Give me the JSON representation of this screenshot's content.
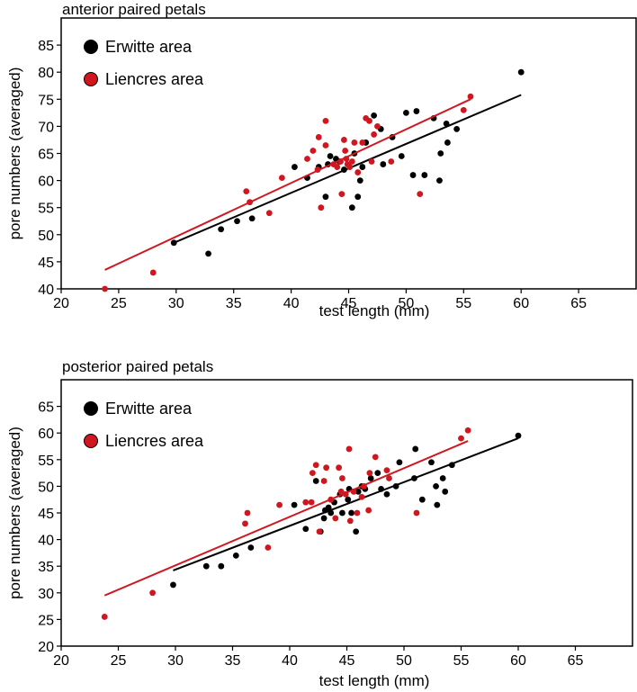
{
  "colors": {
    "erwitte": "#000000",
    "liencres": "#d0161f"
  },
  "chart_data": [
    {
      "type": "scatter",
      "title": "anterior paired petals",
      "xlabel": "test length (mm)",
      "ylabel": "pore numbers (averaged)",
      "xlim": [
        20,
        70
      ],
      "ylim": [
        40,
        90
      ],
      "xticks": [
        20,
        25,
        30,
        35,
        40,
        45,
        50,
        55,
        60,
        65
      ],
      "yticks": [
        40,
        45,
        50,
        55,
        60,
        65,
        70,
        75,
        80,
        85
      ],
      "xtick_labels": [
        "20",
        "25",
        "30",
        "35",
        "40",
        "45",
        "50",
        "55",
        "60",
        "65"
      ],
      "ytick_labels": [
        "40",
        "45",
        "50",
        "55",
        "60",
        "65",
        "70",
        "75",
        "80",
        "85"
      ],
      "legend_position": "top-left",
      "series": [
        {
          "name": "Erwitte area",
          "color": "#000000",
          "points": [
            [
              29.8,
              48.5
            ],
            [
              32.8,
              46.5
            ],
            [
              33.9,
              51
            ],
            [
              35.3,
              52.5
            ],
            [
              36.6,
              53
            ],
            [
              40.3,
              62.5
            ],
            [
              41.4,
              60.5
            ],
            [
              42.4,
              62.5
            ],
            [
              43.0,
              57
            ],
            [
              43.2,
              63
            ],
            [
              43.4,
              64.5
            ],
            [
              43.9,
              64
            ],
            [
              44.2,
              63.5
            ],
            [
              44.6,
              62
            ],
            [
              45.3,
              55
            ],
            [
              45.5,
              65
            ],
            [
              45.8,
              57
            ],
            [
              46.0,
              60
            ],
            [
              46.2,
              62.5
            ],
            [
              46.5,
              67
            ],
            [
              47.2,
              72
            ],
            [
              47.8,
              69.5
            ],
            [
              48.0,
              63
            ],
            [
              48.8,
              68
            ],
            [
              49.6,
              64.5
            ],
            [
              50.0,
              72.5
            ],
            [
              50.6,
              61
            ],
            [
              50.9,
              72.8
            ],
            [
              51.6,
              61
            ],
            [
              52.4,
              71.5
            ],
            [
              52.9,
              60
            ],
            [
              53.0,
              65
            ],
            [
              53.5,
              70.5
            ],
            [
              53.6,
              67
            ],
            [
              54.4,
              69.5
            ],
            [
              60.0,
              80
            ]
          ],
          "trendline": [
            [
              29.8,
              48.5
            ],
            [
              60.0,
              75.8
            ]
          ]
        },
        {
          "name": "Liencres area",
          "color": "#d0161f",
          "points": [
            [
              23.8,
              40
            ],
            [
              28.0,
              43
            ],
            [
              36.1,
              58
            ],
            [
              36.4,
              56
            ],
            [
              38.1,
              54
            ],
            [
              39.2,
              60.5
            ],
            [
              41.4,
              64
            ],
            [
              41.9,
              65.5
            ],
            [
              42.3,
              62
            ],
            [
              42.4,
              68
            ],
            [
              42.6,
              55
            ],
            [
              43.0,
              71
            ],
            [
              43.0,
              66.5
            ],
            [
              43.7,
              63
            ],
            [
              44.0,
              62.5
            ],
            [
              44.3,
              63.5
            ],
            [
              44.4,
              57.5
            ],
            [
              44.6,
              67.5
            ],
            [
              44.7,
              65.5
            ],
            [
              44.8,
              64
            ],
            [
              44.9,
              63
            ],
            [
              45.1,
              62.5
            ],
            [
              45.3,
              63.5
            ],
            [
              45.5,
              67
            ],
            [
              45.8,
              61.5
            ],
            [
              46.2,
              67
            ],
            [
              46.5,
              71.5
            ],
            [
              46.8,
              71
            ],
            [
              47.0,
              63.5
            ],
            [
              47.2,
              68.5
            ],
            [
              47.5,
              70
            ],
            [
              48.7,
              63.5
            ],
            [
              51.2,
              57.5
            ],
            [
              55.0,
              73
            ],
            [
              55.6,
              75.5
            ]
          ],
          "trendline": [
            [
              23.8,
              43.5
            ],
            [
              55.6,
              75.0
            ]
          ]
        }
      ]
    },
    {
      "type": "scatter",
      "title": "posterior paired petals",
      "xlabel": "test length (mm)",
      "ylabel": "pore numbers (averaged)",
      "xlim": [
        20,
        70
      ],
      "ylim": [
        20,
        70
      ],
      "xticks": [
        20,
        25,
        30,
        35,
        40,
        45,
        50,
        55,
        60,
        65
      ],
      "yticks": [
        20,
        25,
        30,
        35,
        40,
        45,
        50,
        55,
        60,
        65
      ],
      "xtick_labels": [
        "20",
        "25",
        "30",
        "35",
        "40",
        "45",
        "50",
        "55",
        "60",
        "65"
      ],
      "ytick_labels": [
        "20",
        "25",
        "30",
        "35",
        "40",
        "45",
        "50",
        "55",
        "60",
        "65"
      ],
      "legend_position": "top-left",
      "series": [
        {
          "name": "Erwitte area",
          "color": "#000000",
          "points": [
            [
              29.8,
              31.5
            ],
            [
              32.7,
              35
            ],
            [
              34.0,
              35
            ],
            [
              35.3,
              37
            ],
            [
              36.6,
              38.5
            ],
            [
              40.4,
              46.5
            ],
            [
              41.4,
              42
            ],
            [
              42.3,
              51
            ],
            [
              42.7,
              41.5
            ],
            [
              43.0,
              44
            ],
            [
              43.1,
              45.5
            ],
            [
              43.4,
              46
            ],
            [
              43.6,
              45
            ],
            [
              43.9,
              47
            ],
            [
              44.4,
              48.5
            ],
            [
              44.6,
              45
            ],
            [
              45.1,
              47.5
            ],
            [
              45.2,
              49.5
            ],
            [
              45.4,
              45
            ],
            [
              45.8,
              41.5
            ],
            [
              46.0,
              49
            ],
            [
              46.3,
              50
            ],
            [
              46.6,
              49.5
            ],
            [
              47.1,
              51.5
            ],
            [
              47.7,
              52.5
            ],
            [
              48.0,
              49.5
            ],
            [
              48.5,
              48.5
            ],
            [
              49.3,
              50
            ],
            [
              49.6,
              54.5
            ],
            [
              50.9,
              51.5
            ],
            [
              51.0,
              57
            ],
            [
              51.6,
              47.5
            ],
            [
              52.4,
              54.5
            ],
            [
              52.8,
              50
            ],
            [
              52.9,
              46.5
            ],
            [
              53.4,
              51.5
            ],
            [
              53.6,
              49
            ],
            [
              54.2,
              54
            ],
            [
              60.0,
              59.5
            ]
          ],
          "trendline": [
            [
              29.8,
              34.2
            ],
            [
              60.0,
              59.0
            ]
          ]
        },
        {
          "name": "Liencres area",
          "color": "#d0161f",
          "points": [
            [
              23.8,
              25.5
            ],
            [
              28.0,
              30
            ],
            [
              36.1,
              43
            ],
            [
              36.3,
              45
            ],
            [
              38.1,
              38.5
            ],
            [
              39.1,
              46.5
            ],
            [
              41.4,
              47
            ],
            [
              41.9,
              47
            ],
            [
              42.0,
              52.5
            ],
            [
              42.3,
              54
            ],
            [
              42.6,
              41.5
            ],
            [
              43.0,
              51
            ],
            [
              43.2,
              53.5
            ],
            [
              43.6,
              47.5
            ],
            [
              44.0,
              44
            ],
            [
              44.3,
              53.5
            ],
            [
              44.5,
              49
            ],
            [
              44.6,
              51.5
            ],
            [
              44.9,
              48.5
            ],
            [
              45.2,
              57
            ],
            [
              45.3,
              43.5
            ],
            [
              45.6,
              49
            ],
            [
              45.9,
              45
            ],
            [
              46.3,
              48
            ],
            [
              46.5,
              50
            ],
            [
              46.9,
              45.5
            ],
            [
              47.0,
              52.5
            ],
            [
              47.5,
              55.5
            ],
            [
              48.5,
              53
            ],
            [
              48.7,
              51.5
            ],
            [
              51.1,
              45
            ],
            [
              55.0,
              59
            ],
            [
              55.6,
              60.5
            ]
          ],
          "trendline": [
            [
              23.8,
              29.5
            ],
            [
              55.6,
              58.5
            ]
          ]
        }
      ]
    }
  ]
}
